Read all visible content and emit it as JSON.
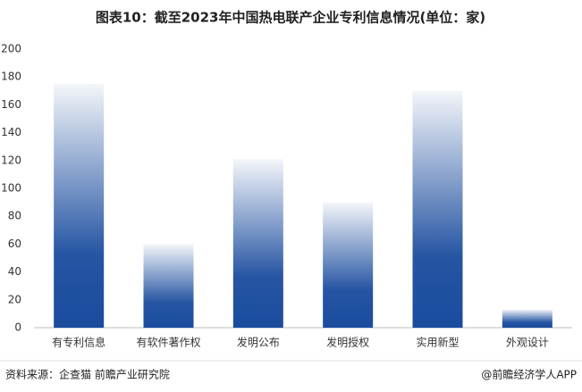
{
  "chart_data": {
    "type": "bar",
    "title": "图表10：截至2023年中国热电联产企业专利信息情况(单位：家)",
    "categories": [
      "有专利信息",
      "有软件著作权",
      "发明公布",
      "发明授权",
      "实用新型",
      "外观设计"
    ],
    "values": [
      175,
      60,
      121,
      90,
      170,
      13
    ],
    "color": "#1a4c9e",
    "ylim": [
      0,
      200
    ],
    "yticks": [
      0,
      20,
      40,
      60,
      80,
      100,
      120,
      140,
      160,
      180,
      200
    ],
    "grid": false,
    "source": "资料来源：企查猫 前瞻产业研究院",
    "credit": "@前瞻经济学人APP"
  }
}
